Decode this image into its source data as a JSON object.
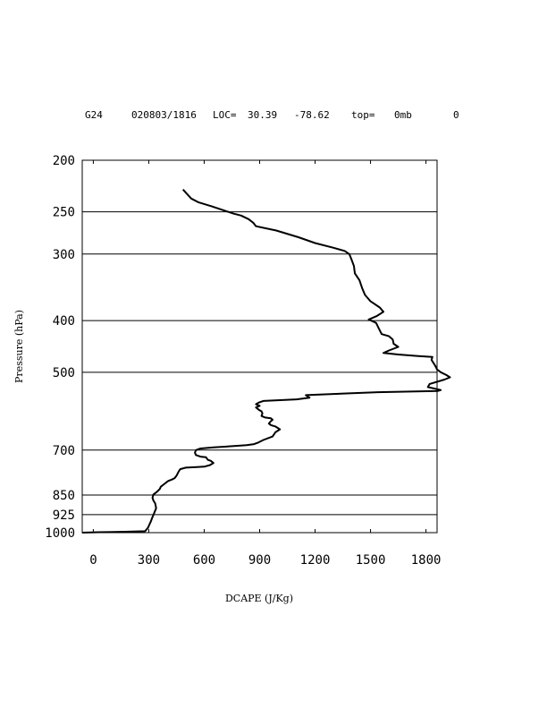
{
  "header": {
    "model": "G24",
    "datetime": "020803/1816",
    "loc_label": "LOC=",
    "lat": "30.39",
    "lon": "-78.62",
    "top_label": "top=",
    "top_value": "0mb",
    "extra": "0"
  },
  "chart_data": {
    "type": "line",
    "title": "",
    "xlabel": "DCAPE (J/Kg)",
    "ylabel": "Pressure (hPa)",
    "xlim": [
      -60,
      1860
    ],
    "ylim": [
      1000,
      200
    ],
    "y_scale": "log",
    "x_ticks": [
      0,
      300,
      600,
      900,
      1200,
      1500,
      1800
    ],
    "y_ticks": [
      200,
      250,
      300,
      400,
      500,
      700,
      850,
      925,
      1000
    ],
    "y_gridlines": [
      250,
      300,
      400,
      500,
      700,
      850,
      925
    ],
    "series": [
      {
        "color": "#000000",
        "points": [
          [
            -60,
            1000
          ],
          [
            30,
            998
          ],
          [
            170,
            996
          ],
          [
            280,
            994
          ],
          [
            295,
            980
          ],
          [
            310,
            955
          ],
          [
            320,
            935
          ],
          [
            330,
            918
          ],
          [
            340,
            900
          ],
          [
            335,
            882
          ],
          [
            325,
            870
          ],
          [
            320,
            860
          ],
          [
            325,
            848
          ],
          [
            345,
            838
          ],
          [
            360,
            828
          ],
          [
            365,
            820
          ],
          [
            385,
            810
          ],
          [
            405,
            800
          ],
          [
            425,
            795
          ],
          [
            440,
            790
          ],
          [
            450,
            782
          ],
          [
            460,
            770
          ],
          [
            470,
            760
          ],
          [
            500,
            755
          ],
          [
            560,
            753
          ],
          [
            600,
            752
          ],
          [
            630,
            747
          ],
          [
            650,
            740
          ],
          [
            635,
            733
          ],
          [
            620,
            730
          ],
          [
            610,
            722
          ],
          [
            580,
            720
          ],
          [
            555,
            715
          ],
          [
            550,
            708
          ],
          [
            555,
            700
          ],
          [
            580,
            695
          ],
          [
            650,
            692
          ],
          [
            760,
            688
          ],
          [
            830,
            685
          ],
          [
            870,
            682
          ],
          [
            890,
            678
          ],
          [
            920,
            670
          ],
          [
            970,
            660
          ],
          [
            985,
            648
          ],
          [
            1010,
            640
          ],
          [
            985,
            632
          ],
          [
            960,
            628
          ],
          [
            950,
            624
          ],
          [
            960,
            618
          ],
          [
            970,
            614
          ],
          [
            960,
            610
          ],
          [
            930,
            608
          ],
          [
            910,
            604
          ],
          [
            915,
            597
          ],
          [
            910,
            592
          ],
          [
            895,
            588
          ],
          [
            880,
            582
          ],
          [
            900,
            578
          ],
          [
            880,
            574
          ],
          [
            895,
            570
          ],
          [
            920,
            566
          ],
          [
            1100,
            562
          ],
          [
            1170,
            558
          ],
          [
            1150,
            552
          ],
          [
            1540,
            545
          ],
          [
            1865,
            542
          ],
          [
            1880,
            540
          ],
          [
            1810,
            533
          ],
          [
            1820,
            526
          ],
          [
            1900,
            516
          ],
          [
            1930,
            511
          ],
          [
            1910,
            506
          ],
          [
            1880,
            500
          ],
          [
            1860,
            494
          ],
          [
            1850,
            486
          ],
          [
            1840,
            480
          ],
          [
            1830,
            474
          ],
          [
            1835,
            468
          ],
          [
            1750,
            466
          ],
          [
            1650,
            463
          ],
          [
            1570,
            460
          ],
          [
            1600,
            455
          ],
          [
            1650,
            448
          ],
          [
            1625,
            442
          ],
          [
            1620,
            434
          ],
          [
            1600,
            428
          ],
          [
            1560,
            424
          ],
          [
            1545,
            414
          ],
          [
            1530,
            404
          ],
          [
            1490,
            398
          ],
          [
            1535,
            392
          ],
          [
            1570,
            385
          ],
          [
            1550,
            378
          ],
          [
            1500,
            368
          ],
          [
            1470,
            358
          ],
          [
            1455,
            348
          ],
          [
            1440,
            336
          ],
          [
            1415,
            326
          ],
          [
            1410,
            316
          ],
          [
            1395,
            306
          ],
          [
            1385,
            300
          ],
          [
            1360,
            296
          ],
          [
            1300,
            292
          ],
          [
            1200,
            286
          ],
          [
            1110,
            279
          ],
          [
            990,
            271
          ],
          [
            880,
            266
          ],
          [
            865,
            262
          ],
          [
            840,
            258
          ],
          [
            800,
            254
          ],
          [
            760,
            252
          ],
          [
            700,
            248
          ],
          [
            640,
            244
          ],
          [
            570,
            240
          ],
          [
            530,
            236
          ],
          [
            505,
            231
          ],
          [
            485,
            227
          ]
        ]
      }
    ]
  }
}
